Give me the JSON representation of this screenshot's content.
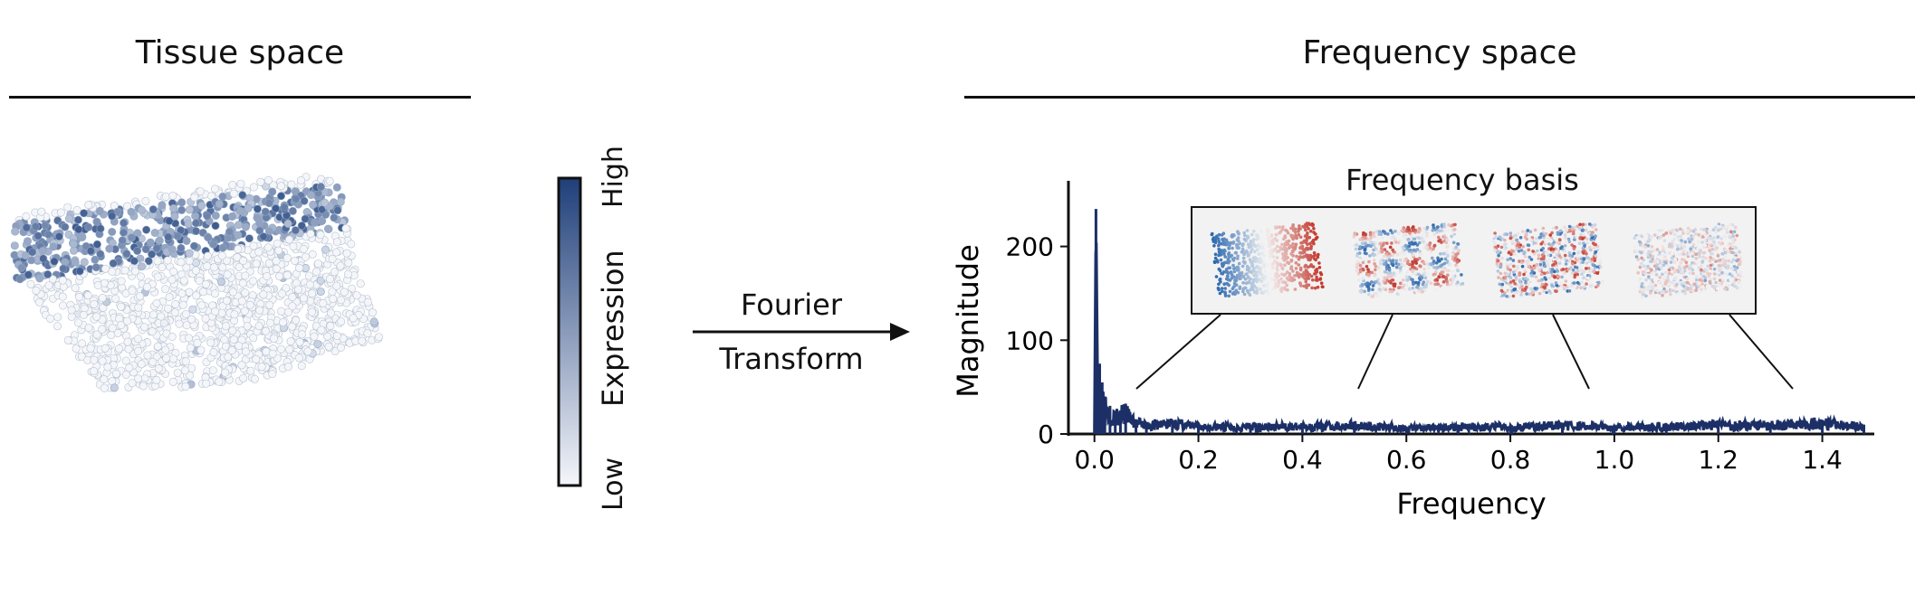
{
  "left_panel": {
    "title": "Tissue space",
    "colorbar": {
      "high_label": "High",
      "mid_label": "Expression",
      "low_label": "Low",
      "colors": [
        "#f4f6fa",
        "#1f3f7a"
      ]
    }
  },
  "arrow": {
    "line1": "Fourier",
    "line2": "Transform"
  },
  "right_panel": {
    "title": "Frequency space",
    "inset_title": "Frequency basis"
  },
  "chart_data": {
    "type": "line",
    "xlabel": "Frequency",
    "ylabel": "Magnitude",
    "xlim": [
      -0.05,
      1.5
    ],
    "ylim": [
      0,
      270
    ],
    "xticks": [
      "0.0",
      "0.2",
      "0.4",
      "0.6",
      "0.8",
      "1.0",
      "1.2",
      "1.4"
    ],
    "yticks": [
      "0",
      "100",
      "200"
    ],
    "series": [
      {
        "color": "#1c2f66",
        "x": [
          0.0,
          0.003,
          0.006,
          0.01,
          0.015,
          0.02,
          0.03,
          0.04,
          0.05,
          0.06,
          0.08,
          0.1,
          0.15,
          0.2,
          0.3,
          0.4,
          0.5,
          0.6,
          0.7,
          0.8,
          0.9,
          1.0,
          1.1,
          1.2,
          1.3,
          1.4,
          1.48
        ],
        "y": [
          5,
          240,
          60,
          75,
          55,
          40,
          30,
          22,
          25,
          28,
          15,
          12,
          15,
          10,
          10,
          10,
          12,
          8,
          10,
          10,
          12,
          10,
          10,
          12,
          12,
          15,
          10
        ]
      }
    ],
    "grid": false
  }
}
